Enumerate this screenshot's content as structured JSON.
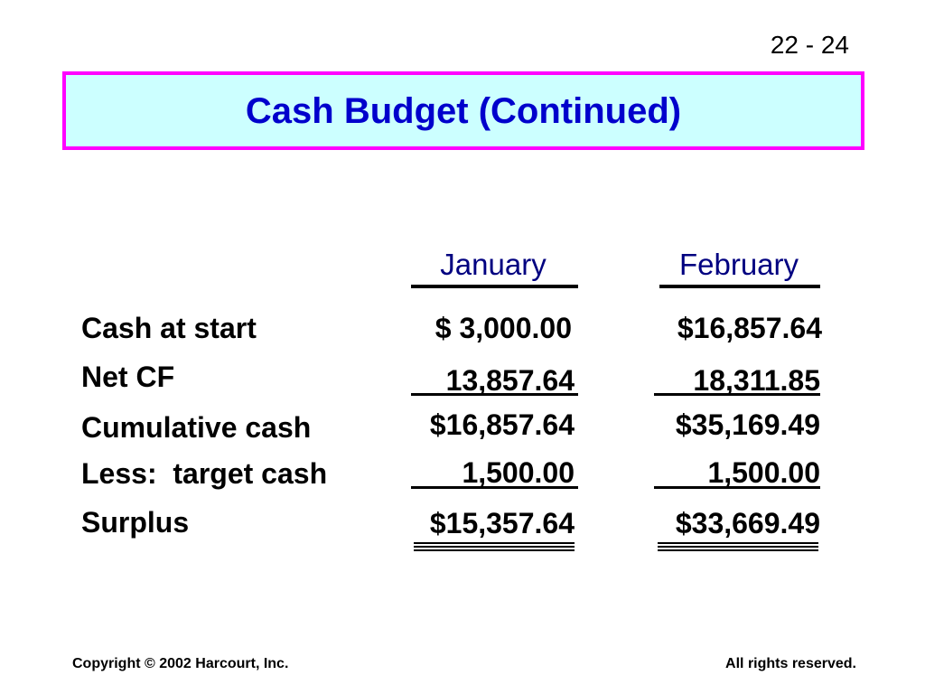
{
  "page_number": "22 - 24",
  "title": "Cash Budget (Continued)",
  "colors": {
    "title_text": "#0000cc",
    "title_background": "#ccffff",
    "title_border": "#ff00ff",
    "header_text": "#000080"
  },
  "columns": {
    "january": "January",
    "february": "February"
  },
  "rows": [
    {
      "label": "Cash at start",
      "january": "$ 3,000.00",
      "february": "$16,857.64"
    },
    {
      "label": "Net CF",
      "january": "13,857.64",
      "february": "18,311.85"
    },
    {
      "label": "Cumulative cash",
      "january": "$16,857.64",
      "february": "$35,169.49"
    },
    {
      "label": "Less:  target cash",
      "january": "1,500.00",
      "february": "1,500.00"
    },
    {
      "label": "Surplus",
      "january": "$15,357.64",
      "february": "$33,669.49"
    }
  ],
  "footer": {
    "copyright": "Copyright © 2002 Harcourt, Inc.",
    "rights": "All rights reserved."
  }
}
